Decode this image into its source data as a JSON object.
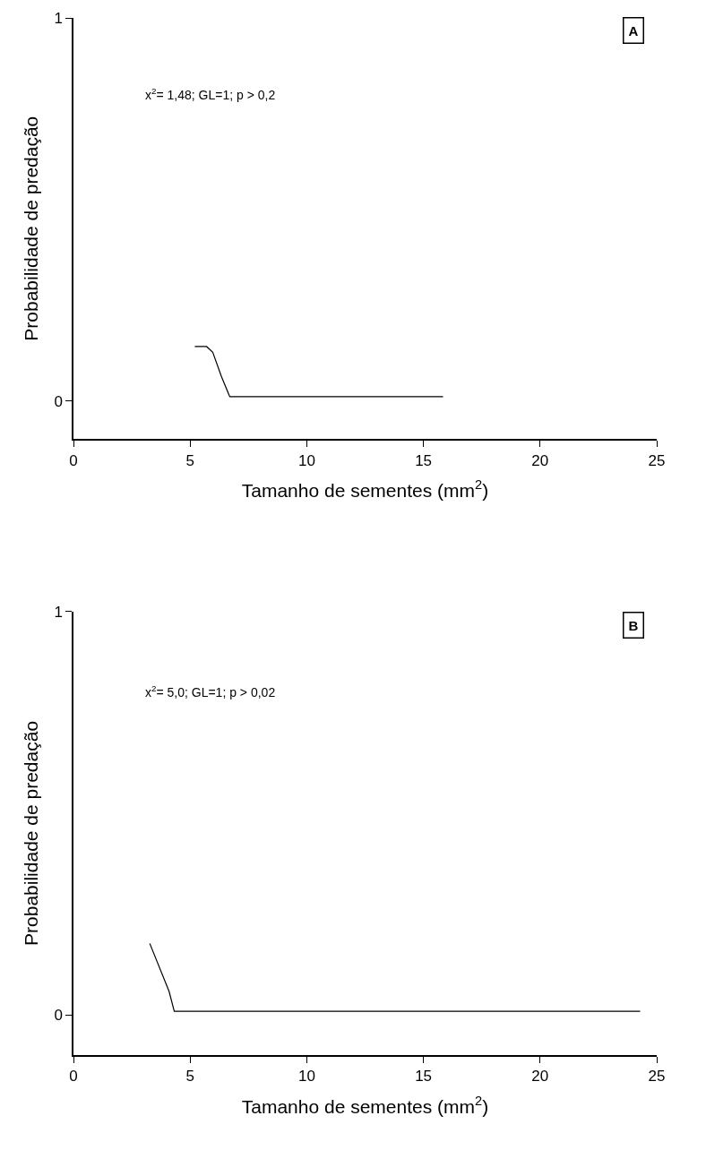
{
  "chart_data": [
    {
      "type": "line",
      "xlabel": "Tamanho de sementes (mm$^{2}$)",
      "ylabel": "Probabilidade de predação",
      "annotations": [
        "x$^{2}$= 1,48; GL=1; p > 0,2",
        "A"
      ],
      "series": [
        {
          "color": "#000000",
          "x": [
            5.2,
            5.71,
            5.97,
            6.34,
            6.7,
            15.84
          ],
          "values": [
            0.142,
            0.142,
            0.127,
            0.064,
            0.011,
            0.011
          ]
        }
      ],
      "xlim": [
        0,
        25
      ],
      "xticks": [
        0,
        5,
        10,
        15,
        20,
        25
      ],
      "ylim": [
        -0.1,
        1
      ],
      "yticks": [
        0,
        1
      ],
      "marker": "none",
      "line_style": "solid"
    },
    {
      "type": "line",
      "xlabel": "Tamanho de sementes (mm$^{2}$)",
      "ylabel": "Probabilidade de predação",
      "annotations": [
        "x$^{2}$= 5,0; GL=1; p > 0,02",
        "B"
      ],
      "series": [
        {
          "color": "#000000",
          "x": [
            3.27,
            4.1,
            4.32,
            24.29
          ],
          "values": [
            0.177,
            0.058,
            0.009,
            0.009
          ]
        }
      ],
      "xlim": [
        0,
        25
      ],
      "xticks": [
        0,
        5,
        10,
        15,
        20,
        25
      ],
      "ylim": [
        -0.1,
        1
      ],
      "yticks": [
        0,
        1
      ],
      "marker": "none",
      "line_style": "solid"
    }
  ]
}
